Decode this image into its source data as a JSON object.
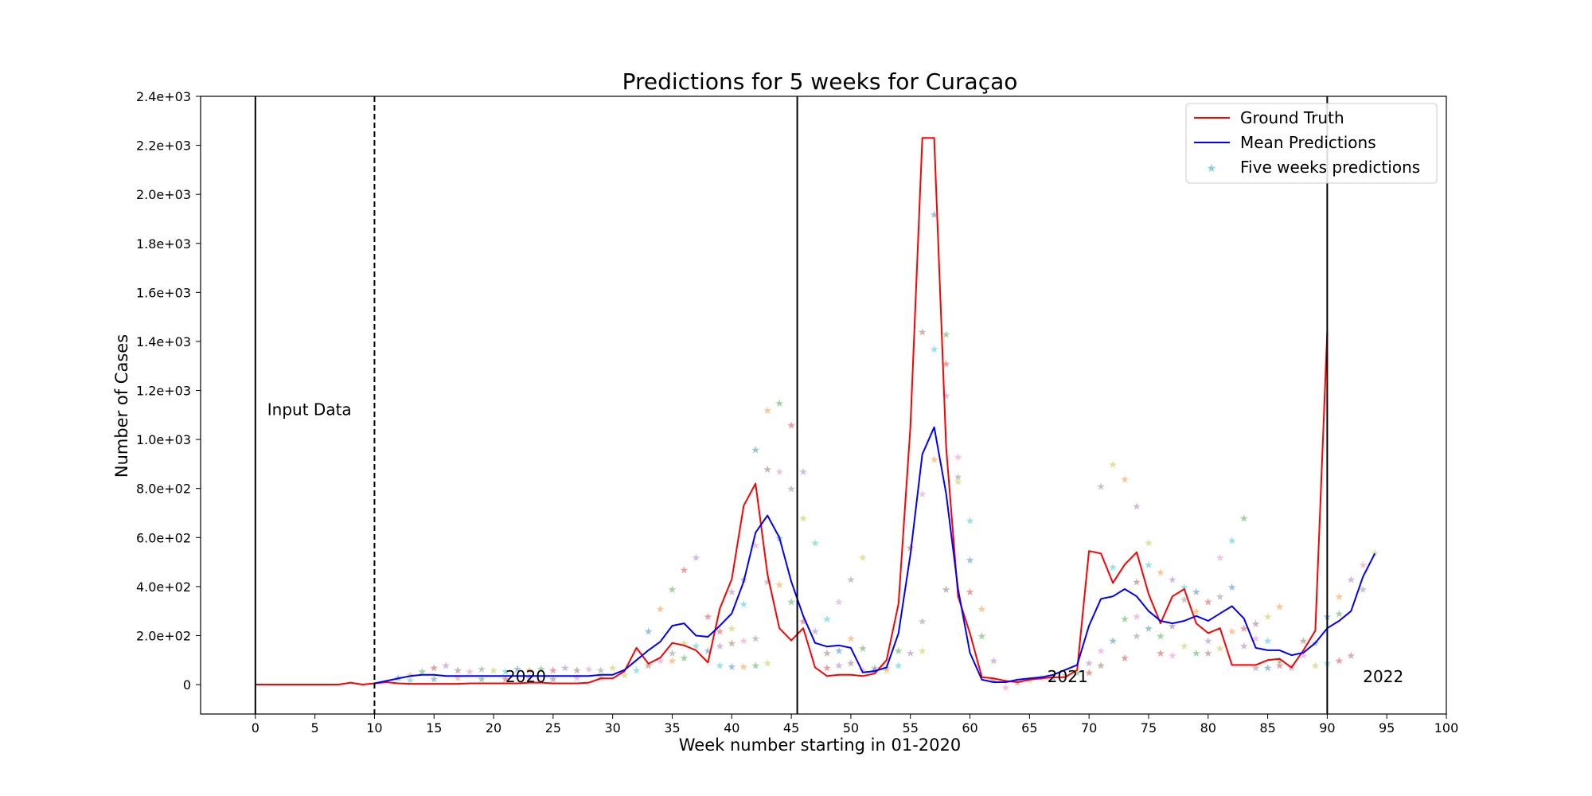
{
  "chart_data": {
    "type": "line",
    "title": "Predictions for 5 weeks for Curaçao",
    "xlabel": "Week number starting in 01-2020",
    "ylabel": "Number of Cases",
    "xlim": [
      -4.6,
      100
    ],
    "ylim": [
      -120,
      2400
    ],
    "x_ticks": [
      0,
      5,
      10,
      15,
      20,
      25,
      30,
      35,
      40,
      45,
      50,
      55,
      60,
      65,
      70,
      75,
      80,
      85,
      90,
      95,
      100
    ],
    "y_ticks": [
      0,
      200,
      400,
      600,
      800,
      1000,
      1200,
      1400,
      1600,
      1800,
      2000,
      2200,
      2400
    ],
    "y_tick_labels": [
      "0",
      "2.0e+02",
      "4.0e+02",
      "6.0e+02",
      "8.0e+02",
      "1.0e+03",
      "1.2e+03",
      "1.4e+03",
      "1.6e+03",
      "1.8e+03",
      "2.0e+03",
      "2.2e+03",
      "2.4e+03"
    ],
    "grid": false,
    "legend_position": "top-right",
    "vertical_lines": [
      {
        "x": 0,
        "style": "solid"
      },
      {
        "x": 10,
        "style": "dashed"
      },
      {
        "x": 45.5,
        "style": "solid"
      },
      {
        "x": 90,
        "style": "solid"
      }
    ],
    "annotations": [
      {
        "text": "Input Data",
        "x": 1,
        "y": 1100
      },
      {
        "text": "2020",
        "x": 21,
        "y": 10
      },
      {
        "text": "2021",
        "x": 66.5,
        "y": 10
      },
      {
        "text": "2022",
        "x": 93,
        "y": 10
      }
    ],
    "series": [
      {
        "name": "Ground Truth",
        "color": "#ff0000",
        "x": [
          0,
          1,
          2,
          3,
          4,
          5,
          6,
          7,
          8,
          9,
          10,
          11,
          12,
          13,
          14,
          15,
          16,
          17,
          18,
          19,
          20,
          21,
          22,
          23,
          24,
          25,
          26,
          27,
          28,
          29,
          30,
          31,
          32,
          33,
          34,
          35,
          36,
          37,
          38,
          39,
          40,
          41,
          42,
          43,
          44,
          45,
          46,
          47,
          48,
          49,
          50,
          51,
          52,
          53,
          54,
          55,
          56,
          57,
          58,
          59,
          60,
          61,
          62,
          63,
          64,
          65,
          66,
          67,
          68,
          69,
          70,
          71,
          72,
          73,
          74,
          75,
          76,
          77,
          78,
          79,
          80,
          81,
          82,
          83,
          84,
          85,
          86,
          87,
          88,
          89,
          90
        ],
        "values": [
          0,
          0,
          0,
          0,
          0,
          0,
          0,
          0,
          8,
          0,
          5,
          10,
          5,
          3,
          3,
          3,
          3,
          3,
          5,
          5,
          5,
          5,
          5,
          8,
          8,
          5,
          5,
          5,
          8,
          25,
          25,
          55,
          150,
          85,
          110,
          170,
          160,
          140,
          90,
          310,
          430,
          730,
          820,
          450,
          230,
          180,
          230,
          70,
          35,
          40,
          40,
          35,
          45,
          100,
          330,
          1050,
          2230,
          2230,
          970,
          360,
          210,
          30,
          25,
          15,
          10,
          20,
          25,
          30,
          30,
          60,
          545,
          535,
          415,
          490,
          540,
          370,
          250,
          360,
          390,
          250,
          210,
          230,
          80,
          80,
          80,
          100,
          105,
          70,
          140,
          220,
          1440
        ]
      },
      {
        "name": "Mean Predictions",
        "color": "#0000ff",
        "x": [
          10,
          11,
          12,
          13,
          14,
          15,
          16,
          17,
          18,
          19,
          20,
          21,
          22,
          23,
          24,
          25,
          26,
          27,
          28,
          29,
          30,
          31,
          32,
          33,
          34,
          35,
          36,
          37,
          38,
          39,
          40,
          41,
          42,
          43,
          44,
          45,
          46,
          47,
          48,
          49,
          50,
          51,
          52,
          53,
          54,
          55,
          56,
          57,
          58,
          59,
          60,
          61,
          62,
          63,
          64,
          65,
          66,
          67,
          68,
          69,
          70,
          71,
          72,
          73,
          74,
          75,
          76,
          77,
          78,
          79,
          80,
          81,
          82,
          83,
          84,
          85,
          86,
          87,
          88,
          89,
          90,
          91,
          92,
          93,
          94
        ],
        "values": [
          5,
          15,
          25,
          35,
          40,
          40,
          35,
          35,
          35,
          35,
          35,
          35,
          35,
          35,
          35,
          35,
          35,
          35,
          35,
          40,
          40,
          60,
          100,
          140,
          175,
          240,
          250,
          200,
          195,
          240,
          290,
          420,
          620,
          690,
          600,
          420,
          280,
          170,
          155,
          160,
          150,
          50,
          55,
          70,
          210,
          530,
          940,
          1050,
          780,
          390,
          130,
          20,
          10,
          10,
          20,
          25,
          30,
          40,
          60,
          80,
          240,
          350,
          360,
          390,
          360,
          300,
          260,
          250,
          260,
          280,
          260,
          290,
          320,
          270,
          150,
          140,
          140,
          120,
          130,
          170,
          230,
          260,
          300,
          440,
          535
        ]
      },
      {
        "name": "Five weeks predictions",
        "color": "#87ceeb",
        "marker": "star",
        "points": [
          [
            12,
            30
          ],
          [
            13,
            40
          ],
          [
            14,
            55
          ],
          [
            15,
            70
          ],
          [
            16,
            80
          ],
          [
            17,
            60
          ],
          [
            18,
            55
          ],
          [
            19,
            65
          ],
          [
            20,
            60
          ],
          [
            21,
            55
          ],
          [
            22,
            65
          ],
          [
            23,
            60
          ],
          [
            24,
            65
          ],
          [
            25,
            60
          ],
          [
            26,
            70
          ],
          [
            27,
            60
          ],
          [
            28,
            65
          ],
          [
            29,
            60
          ],
          [
            30,
            70
          ],
          [
            13,
            20
          ],
          [
            15,
            25
          ],
          [
            17,
            30
          ],
          [
            19,
            25
          ],
          [
            21,
            25
          ],
          [
            23,
            30
          ],
          [
            25,
            25
          ],
          [
            27,
            30
          ],
          [
            29,
            30
          ],
          [
            31,
            40
          ],
          [
            32,
            60
          ],
          [
            33,
            220
          ],
          [
            34,
            310
          ],
          [
            35,
            390
          ],
          [
            36,
            470
          ],
          [
            37,
            520
          ],
          [
            33,
            80
          ],
          [
            34,
            100
          ],
          [
            35,
            130
          ],
          [
            36,
            170
          ],
          [
            37,
            160
          ],
          [
            38,
            140
          ],
          [
            35,
            100
          ],
          [
            36,
            110
          ],
          [
            38,
            280
          ],
          [
            39,
            160
          ],
          [
            40,
            170
          ],
          [
            41,
            180
          ],
          [
            42,
            190
          ],
          [
            43,
            90
          ],
          [
            39,
            80
          ],
          [
            40,
            75
          ],
          [
            41,
            75
          ],
          [
            42,
            80
          ],
          [
            39,
            220
          ],
          [
            40,
            380
          ],
          [
            41,
            430
          ],
          [
            42,
            570
          ],
          [
            43,
            420
          ],
          [
            40,
            230
          ],
          [
            41,
            330
          ],
          [
            42,
            960
          ],
          [
            43,
            1120
          ],
          [
            44,
            1150
          ],
          [
            45,
            1060
          ],
          [
            46,
            870
          ],
          [
            43,
            880
          ],
          [
            44,
            870
          ],
          [
            45,
            800
          ],
          [
            46,
            680
          ],
          [
            47,
            580
          ],
          [
            44,
            600
          ],
          [
            44,
            410
          ],
          [
            45,
            340
          ],
          [
            46,
            260
          ],
          [
            47,
            220
          ],
          [
            48,
            130
          ],
          [
            49,
            340
          ],
          [
            50,
            430
          ],
          [
            51,
            520
          ],
          [
            48,
            270
          ],
          [
            49,
            140
          ],
          [
            50,
            190
          ],
          [
            51,
            150
          ],
          [
            48,
            70
          ],
          [
            49,
            80
          ],
          [
            50,
            90
          ],
          [
            51,
            60
          ],
          [
            52,
            70
          ],
          [
            53,
            60
          ],
          [
            54,
            80
          ],
          [
            52,
            60
          ],
          [
            53,
            70
          ],
          [
            54,
            140
          ],
          [
            55,
            560
          ],
          [
            55,
            130
          ],
          [
            56,
            1440
          ],
          [
            56,
            780
          ],
          [
            56,
            260
          ],
          [
            56,
            140
          ],
          [
            57,
            1370
          ],
          [
            57,
            1920
          ],
          [
            57,
            920
          ],
          [
            58,
            1430
          ],
          [
            58,
            1310
          ],
          [
            58,
            1180
          ],
          [
            58,
            390
          ],
          [
            59,
            930
          ],
          [
            59,
            850
          ],
          [
            59,
            830
          ],
          [
            60,
            670
          ],
          [
            60,
            510
          ],
          [
            61,
            310
          ],
          [
            61,
            200
          ],
          [
            60,
            380
          ],
          [
            62,
            100
          ],
          [
            62,
            20
          ],
          [
            63,
            -10
          ],
          [
            64,
            10
          ],
          [
            65,
            20
          ],
          [
            66,
            30
          ],
          [
            67,
            30
          ],
          [
            68,
            40
          ],
          [
            69,
            50
          ],
          [
            70,
            50
          ],
          [
            70,
            90
          ],
          [
            71,
            80
          ],
          [
            71,
            140
          ],
          [
            71,
            810
          ],
          [
            72,
            900
          ],
          [
            72,
            480
          ],
          [
            72,
            180
          ],
          [
            73,
            840
          ],
          [
            73,
            270
          ],
          [
            73,
            110
          ],
          [
            74,
            730
          ],
          [
            74,
            420
          ],
          [
            74,
            280
          ],
          [
            74,
            200
          ],
          [
            75,
            580
          ],
          [
            75,
            490
          ],
          [
            75,
            230
          ],
          [
            76,
            460
          ],
          [
            76,
            200
          ],
          [
            76,
            130
          ],
          [
            77,
            430
          ],
          [
            77,
            240
          ],
          [
            77,
            120
          ],
          [
            78,
            350
          ],
          [
            78,
            160
          ],
          [
            78,
            400
          ],
          [
            79,
            380
          ],
          [
            79,
            300
          ],
          [
            79,
            130
          ],
          [
            80,
            340
          ],
          [
            80,
            180
          ],
          [
            80,
            130
          ],
          [
            81,
            520
          ],
          [
            81,
            360
          ],
          [
            81,
            150
          ],
          [
            82,
            590
          ],
          [
            82,
            400
          ],
          [
            82,
            220
          ],
          [
            83,
            680
          ],
          [
            83,
            230
          ],
          [
            83,
            160
          ],
          [
            84,
            250
          ],
          [
            84,
            190
          ],
          [
            84,
            70
          ],
          [
            85,
            280
          ],
          [
            85,
            180
          ],
          [
            85,
            70
          ],
          [
            86,
            320
          ],
          [
            86,
            100
          ],
          [
            86,
            80
          ],
          [
            87,
            70
          ],
          [
            88,
            180
          ],
          [
            88,
            120
          ],
          [
            89,
            170
          ],
          [
            89,
            80
          ],
          [
            90,
            90
          ],
          [
            90,
            280
          ],
          [
            91,
            360
          ],
          [
            91,
            290
          ],
          [
            91,
            100
          ],
          [
            92,
            430
          ],
          [
            92,
            120
          ],
          [
            93,
            490
          ],
          [
            93,
            390
          ],
          [
            94,
            540
          ]
        ]
      }
    ]
  }
}
